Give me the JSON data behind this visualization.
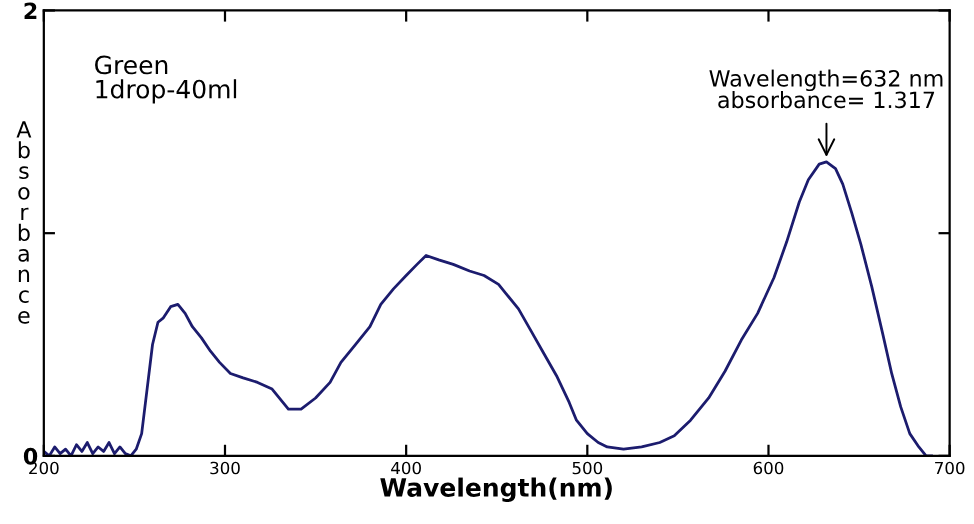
{
  "chart_data": {
    "type": "line",
    "xlabel": "Wavelength(nm)",
    "ylabel": "Absorbance",
    "annotations": [
      "Green\n1drop-40ml",
      {
        "text": "Wavelength=632 nm\nabsorbance= 1.317",
        "x": 632,
        "y": 1.317
      }
    ],
    "series": [
      {
        "color": "#1c1c6e",
        "x": [
          200,
          203,
          206,
          209,
          212,
          215,
          218,
          221,
          224,
          227,
          230,
          233,
          236,
          239,
          242,
          245,
          248,
          251,
          254,
          257,
          260,
          263,
          266,
          270,
          274,
          278,
          282,
          287,
          292,
          297,
          303,
          310,
          318,
          326,
          335,
          342,
          350,
          358,
          364,
          372,
          380,
          386,
          393,
          400,
          406,
          411,
          418,
          426,
          435,
          443,
          451,
          455,
          462,
          469,
          476,
          483,
          490,
          494,
          500,
          506,
          511,
          520,
          530,
          540,
          548,
          557,
          567,
          576,
          585,
          594,
          603,
          610,
          617,
          622,
          628,
          632,
          637,
          641,
          646,
          651,
          657,
          663,
          668,
          673,
          678,
          683,
          687,
          690
        ],
        "values": [
          0.02,
          0.0,
          0.04,
          0.01,
          0.03,
          0.0,
          0.05,
          0.02,
          0.06,
          0.01,
          0.04,
          0.02,
          0.06,
          0.01,
          0.04,
          0.01,
          0.0,
          0.03,
          0.1,
          0.3,
          0.5,
          0.6,
          0.62,
          0.67,
          0.68,
          0.64,
          0.58,
          0.53,
          0.47,
          0.42,
          0.37,
          0.35,
          0.33,
          0.3,
          0.21,
          0.21,
          0.26,
          0.33,
          0.42,
          0.5,
          0.58,
          0.68,
          0.75,
          0.81,
          0.86,
          0.9,
          0.88,
          0.86,
          0.83,
          0.81,
          0.77,
          0.73,
          0.66,
          0.56,
          0.46,
          0.36,
          0.24,
          0.16,
          0.1,
          0.06,
          0.04,
          0.03,
          0.04,
          0.06,
          0.09,
          0.16,
          0.26,
          0.38,
          0.52,
          0.64,
          0.8,
          0.96,
          1.14,
          1.24,
          1.31,
          1.32,
          1.29,
          1.22,
          1.09,
          0.95,
          0.76,
          0.55,
          0.37,
          0.22,
          0.1,
          0.04,
          0.0,
          0.0
        ]
      }
    ],
    "xlim": [
      200,
      700
    ],
    "xticks": [
      200,
      300,
      400,
      500,
      600,
      700
    ],
    "ylim": [
      0,
      2
    ],
    "yticks": [
      0,
      {
        "value": 1,
        "label": null
      },
      2
    ],
    "grid": false,
    "legend": false
  }
}
